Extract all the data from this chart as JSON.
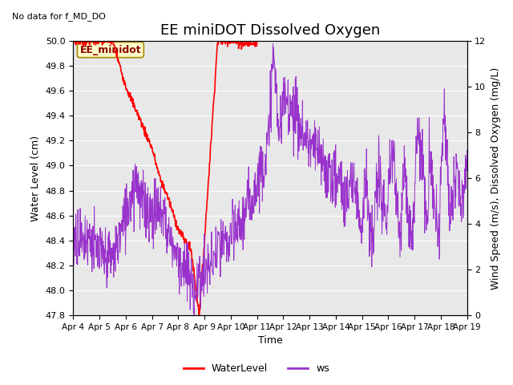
{
  "title": "EE miniDOT Dissolved Oxygen",
  "xlabel": "Time",
  "ylabel_left": "Water Level (cm)",
  "ylabel_right": "Wind Speed (m/s), Dissolved Oxygen (mg/L)",
  "annotation_text": "No data for f_MD_DO",
  "box_label": "EE_minidot",
  "ylim_left": [
    47.8,
    50.0
  ],
  "ylim_right": [
    0,
    12
  ],
  "x_tick_labels": [
    "Apr 4",
    "Apr 5",
    "Apr 6",
    "Apr 7",
    "Apr 8",
    "Apr 9",
    "Apr 10",
    "Apr 11",
    "Apr 12",
    "Apr 13",
    "Apr 14",
    "Apr 15",
    "Apr 16",
    "Apr 17",
    "Apr 18",
    "Apr 19"
  ],
  "legend_labels": [
    "WaterLevel",
    "ws"
  ],
  "line_colors": [
    "red",
    "#9932CC"
  ],
  "plot_bg_color": "#e8e8e8",
  "grid_color": "white",
  "title_fontsize": 13,
  "ylabel_fontsize": 9,
  "xlabel_fontsize": 9,
  "tick_fontsize": 8
}
